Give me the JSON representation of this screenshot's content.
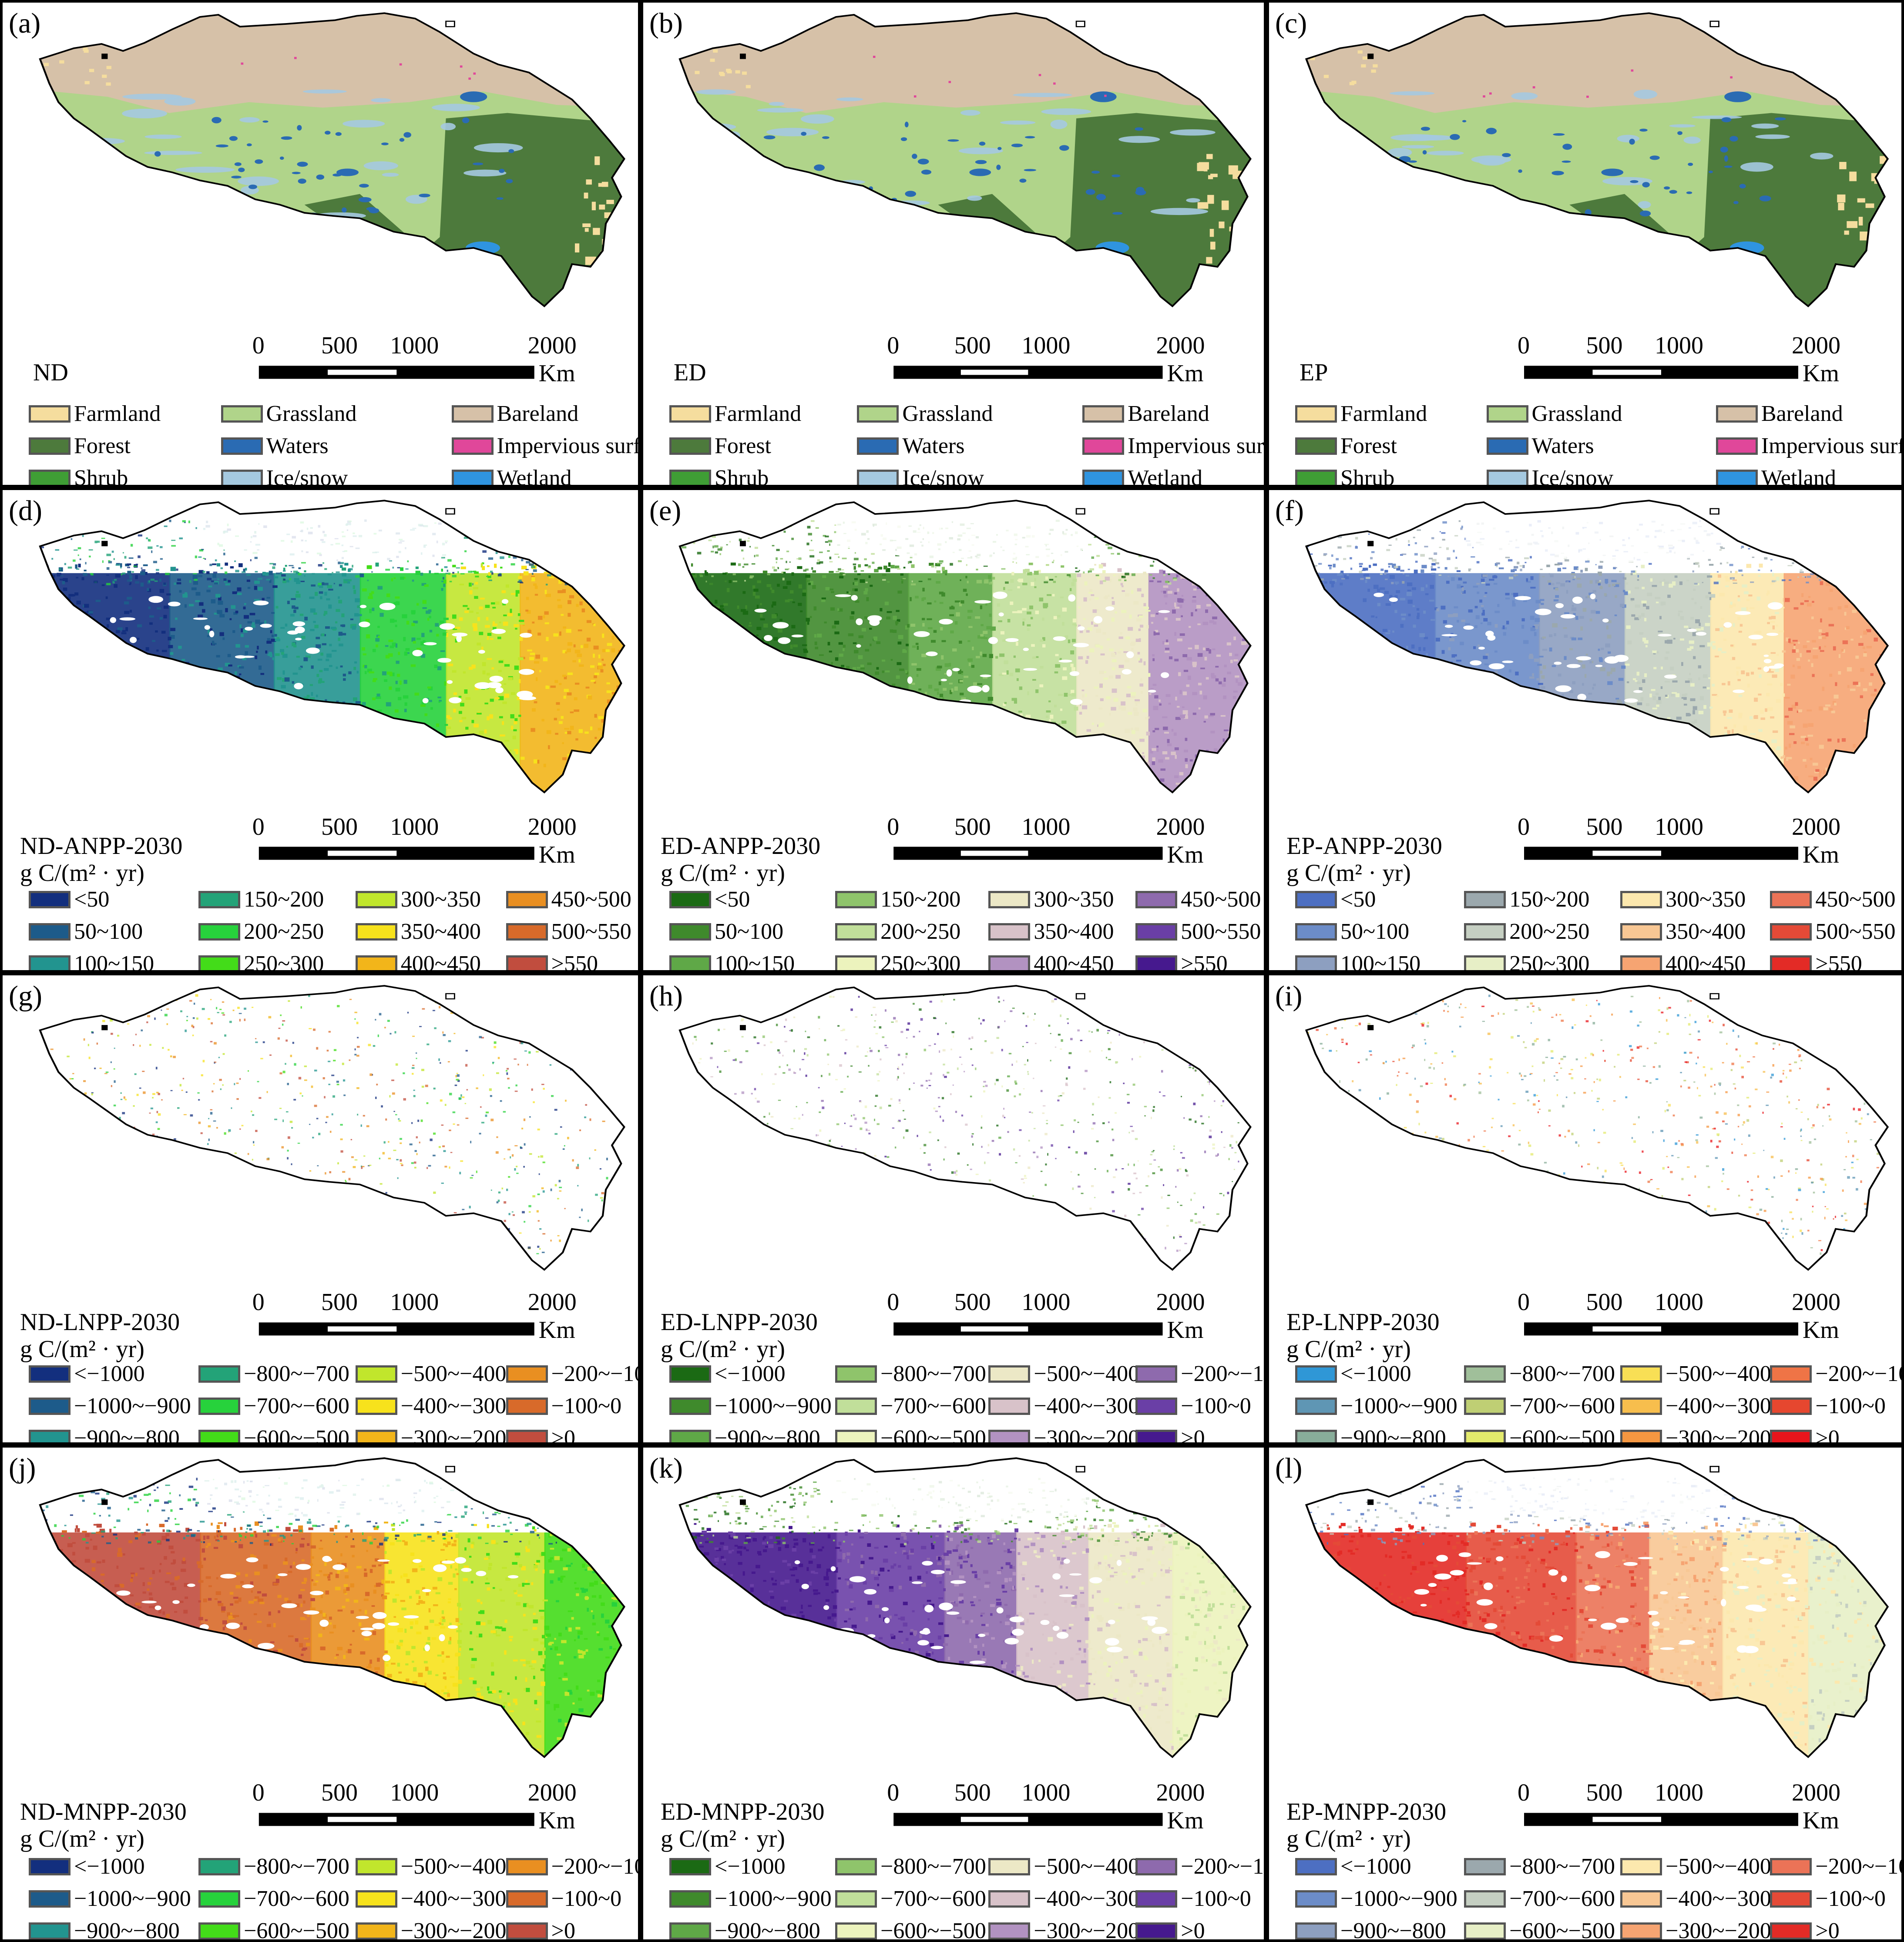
{
  "panels": [
    {
      "label": "(a)",
      "scenario": "ND",
      "kind": "landcover",
      "title": "ND",
      "unit": ""
    },
    {
      "label": "(b)",
      "scenario": "ED",
      "kind": "landcover",
      "title": "ED",
      "unit": ""
    },
    {
      "label": "(c)",
      "scenario": "EP",
      "kind": "landcover",
      "title": "EP",
      "unit": ""
    },
    {
      "label": "(d)",
      "scenario": "ND",
      "kind": "anpp",
      "title": "ND-ANPP-2030",
      "unit": "g C/(m² · yr)"
    },
    {
      "label": "(e)",
      "scenario": "ED",
      "kind": "anpp",
      "title": "ED-ANPP-2030",
      "unit": "g C/(m² · yr)"
    },
    {
      "label": "(f)",
      "scenario": "EP",
      "kind": "anpp",
      "title": "EP-ANPP-2030",
      "unit": "g C/(m² · yr)"
    },
    {
      "label": "(g)",
      "scenario": "ND",
      "kind": "lnpp",
      "title": "ND-LNPP-2030",
      "unit": "g C/(m² · yr)"
    },
    {
      "label": "(h)",
      "scenario": "ED",
      "kind": "lnpp",
      "title": "ED-LNPP-2030",
      "unit": "g C/(m² · yr)"
    },
    {
      "label": "(i)",
      "scenario": "EP",
      "kind": "lnpp",
      "title": "EP-LNPP-2030",
      "unit": "g C/(m² · yr)"
    },
    {
      "label": "(j)",
      "scenario": "ND",
      "kind": "mnpp",
      "title": "ND-MNPP-2030",
      "unit": "g C/(m² · yr)"
    },
    {
      "label": "(k)",
      "scenario": "ED",
      "kind": "mnpp",
      "title": "ED-MNPP-2030",
      "unit": "g C/(m² · yr)"
    },
    {
      "label": "(l)",
      "scenario": "EP",
      "kind": "mnpp",
      "title": "EP-MNPP-2030",
      "unit": "g C/(m² · yr)"
    }
  ],
  "scale_bar": {
    "ticks": [
      "0",
      "500",
      "1000",
      "2000"
    ],
    "unit": "Km"
  },
  "landcover_legend": [
    "Farmland",
    "Grassland",
    "Bareland",
    "Forest",
    "Waters",
    "Impervious surface",
    "Shrub",
    "Ice/snow",
    "Wetland"
  ],
  "landcover_colors": [
    "#f5dd9e",
    "#b0d48a",
    "#d6c1a8",
    "#4d7a3c",
    "#2a6bb3",
    "#e0479a",
    "#3f9e35",
    "#a5c9e0",
    "#2f94e0"
  ],
  "anpp_legend": [
    "<50",
    "150~200",
    "300~350",
    "450~500",
    "50~100",
    "200~250",
    "350~400",
    "500~550",
    "100~150",
    "250~300",
    "400~450",
    ">550"
  ],
  "change_legend": [
    "<−1000",
    "−800~−700",
    "−500~−400",
    "−200~−100",
    "−1000~−900",
    "−700~−600",
    "−400~−300",
    "−100~0",
    "−900~−800",
    "−600~−500",
    "−300~−200",
    ">0"
  ],
  "palettes": {
    "ND": [
      "#132f7e",
      "#23a378",
      "#c1e62c",
      "#e98f21",
      "#1d5b8a",
      "#27d23c",
      "#f7e21c",
      "#d86a2a",
      "#22948f",
      "#43dc19",
      "#f2b51a",
      "#c14d3e"
    ],
    "ED": [
      "#1b6a14",
      "#8fc46b",
      "#ece8c6",
      "#8e6aad",
      "#3f8a2c",
      "#c1df9a",
      "#d8c2c9",
      "#6a3fa6",
      "#5fa847",
      "#ecf3bd",
      "#b292c1",
      "#46198e"
    ],
    "EP": [
      "#4d6fc2",
      "#9ba8ad",
      "#fce8ae",
      "#eb7357",
      "#6c8cc8",
      "#c5cfc2",
      "#f8c794",
      "#e44a37",
      "#8d9fc0",
      "#e7efc6",
      "#f6a472",
      "#e32b26"
    ],
    "EP_LNPP": [
      "#2f97d6",
      "#a0bf9a",
      "#f8df55",
      "#ef7446",
      "#5f96b4",
      "#bfcf74",
      "#f7be4d",
      "#e6472f",
      "#88ad9a",
      "#e3ea6c",
      "#f59741",
      "#e8151c"
    ]
  },
  "panel_colors": {
    "region_outline": "#000000",
    "background": "#ffffff"
  }
}
